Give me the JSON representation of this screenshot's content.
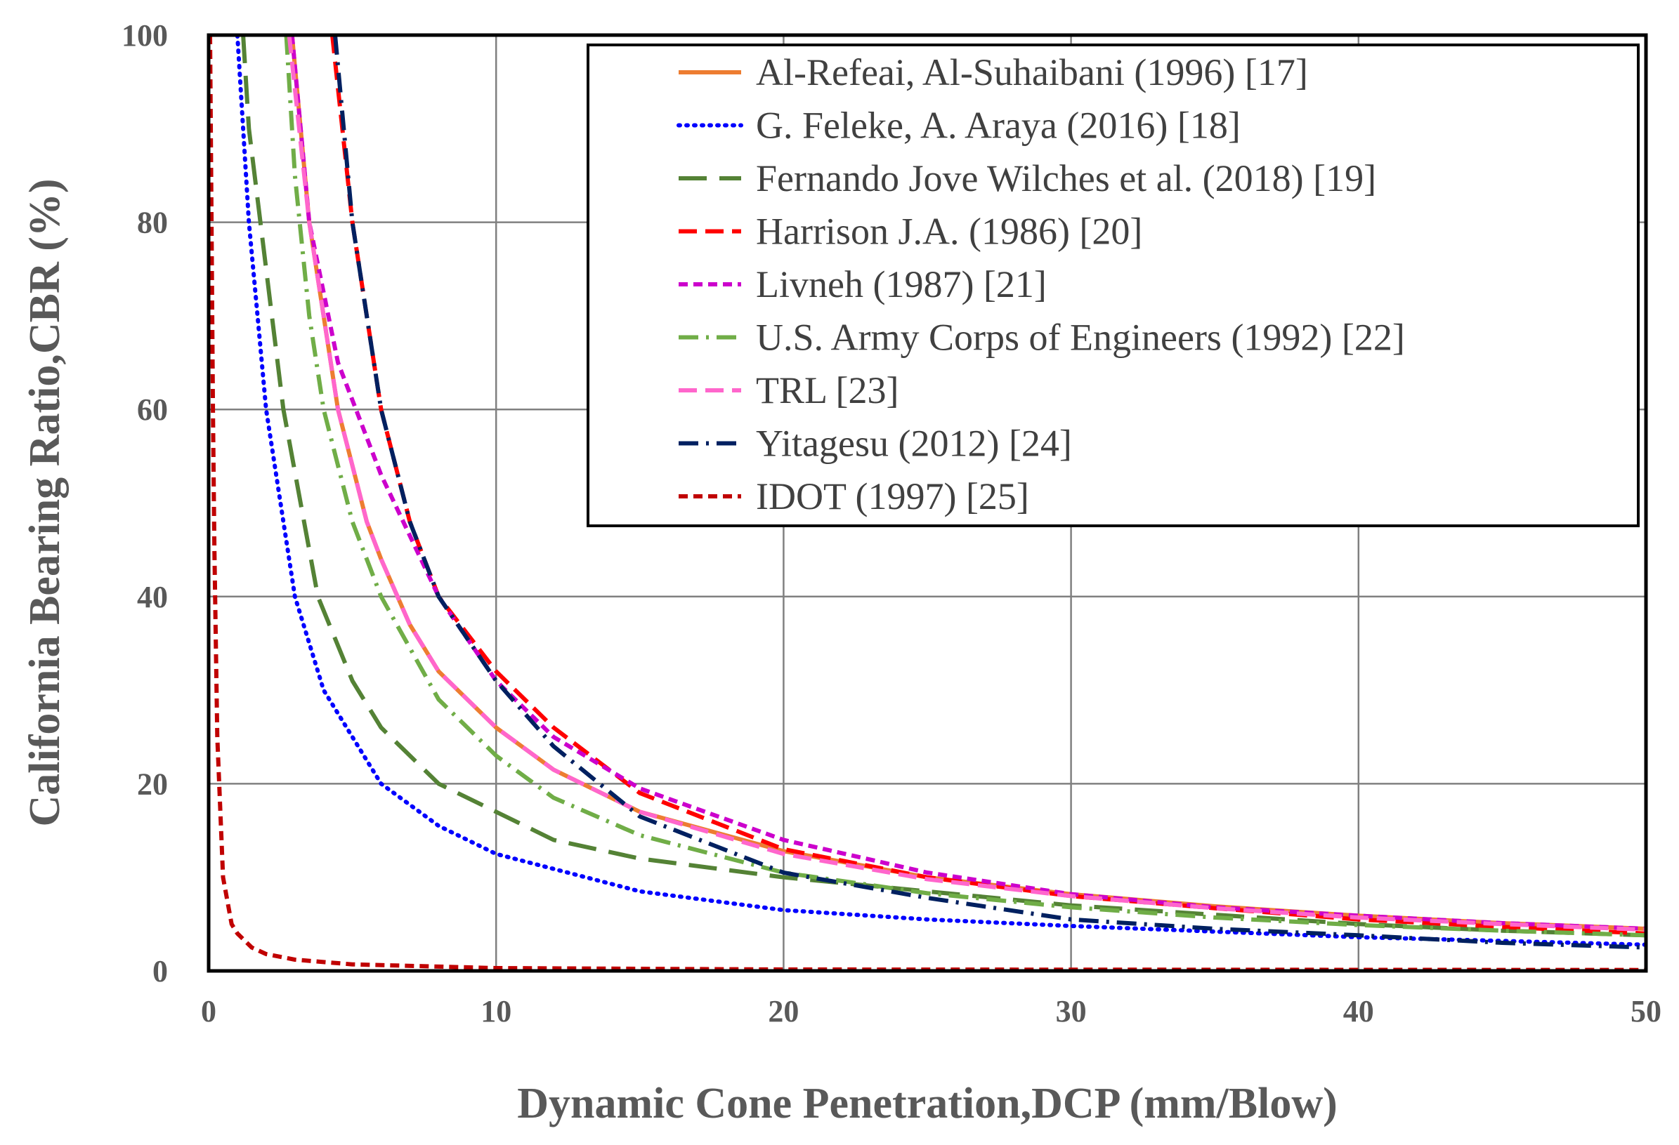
{
  "chart_data": {
    "type": "line",
    "title": "",
    "xlabel": "Dynamic Cone Penetration,DCP (mm/Blow)",
    "ylabel": "California Bearing Ratio,CBR (%)",
    "xlim": [
      0,
      50
    ],
    "ylim": [
      0,
      100
    ],
    "x_ticks": [
      "0",
      "10",
      "20",
      "30",
      "40",
      "50"
    ],
    "y_ticks": [
      "0",
      "20",
      "40",
      "60",
      "80",
      "100"
    ],
    "grid": true,
    "legend_position": "top-right",
    "series": [
      {
        "name": "Al-Refeai, Al-Suhaibani (1996) [17]",
        "color": "#ED7D31",
        "dash": "solid",
        "points": [
          [
            2.9,
            100
          ],
          [
            3.5,
            80
          ],
          [
            4.5,
            60
          ],
          [
            5.5,
            48
          ],
          [
            6,
            44
          ],
          [
            7,
            37
          ],
          [
            8,
            32
          ],
          [
            10,
            26
          ],
          [
            12,
            21.5
          ],
          [
            15,
            17
          ],
          [
            20,
            12.8
          ],
          [
            25,
            10
          ],
          [
            30,
            8.2
          ],
          [
            35,
            6.9
          ],
          [
            40,
            5.9
          ],
          [
            45,
            5.1
          ],
          [
            50,
            4.5
          ]
        ]
      },
      {
        "name": "G. Feleke, A. Araya (2016) [18]",
        "color": "#0000FF",
        "dash": "dot",
        "points": [
          [
            1.0,
            100
          ],
          [
            1.2,
            90
          ],
          [
            1.4,
            80
          ],
          [
            1.7,
            70
          ],
          [
            2.0,
            60
          ],
          [
            2.5,
            50
          ],
          [
            3.0,
            40
          ],
          [
            4,
            30
          ],
          [
            6,
            20
          ],
          [
            8,
            15.5
          ],
          [
            10,
            12.5
          ],
          [
            15,
            8.5
          ],
          [
            20,
            6.5
          ],
          [
            25,
            5.5
          ],
          [
            30,
            4.8
          ],
          [
            35,
            4.2
          ],
          [
            40,
            3.6
          ],
          [
            45,
            3.2
          ],
          [
            50,
            2.8
          ]
        ]
      },
      {
        "name": "Fernando Jove Wilches et al. (2018) [19]",
        "color": "#548235",
        "dash": "longdash",
        "points": [
          [
            1.2,
            100
          ],
          [
            1.4,
            90
          ],
          [
            1.8,
            80
          ],
          [
            2.2,
            70
          ],
          [
            2.6,
            60
          ],
          [
            3.2,
            50
          ],
          [
            3.8,
            40
          ],
          [
            5,
            31
          ],
          [
            6,
            26
          ],
          [
            8,
            20
          ],
          [
            10,
            17
          ],
          [
            12,
            14
          ],
          [
            15,
            12
          ],
          [
            20,
            10
          ],
          [
            25,
            8.5
          ],
          [
            30,
            7
          ],
          [
            35,
            6
          ],
          [
            40,
            5
          ],
          [
            45,
            4.3
          ],
          [
            50,
            3.8
          ]
        ]
      },
      {
        "name": "Harrison J.A. (1986) [20]",
        "color": "#FF0000",
        "dash": "dash",
        "points": [
          [
            4.3,
            100
          ],
          [
            5,
            80
          ],
          [
            6,
            60
          ],
          [
            7,
            48
          ],
          [
            8,
            40
          ],
          [
            10,
            32
          ],
          [
            12,
            26
          ],
          [
            15,
            19
          ],
          [
            20,
            13
          ],
          [
            25,
            10
          ],
          [
            30,
            8
          ],
          [
            35,
            6.7
          ],
          [
            40,
            5.5
          ],
          [
            45,
            4.7
          ],
          [
            50,
            4
          ]
        ]
      },
      {
        "name": "Livneh (1987) [21]",
        "color": "#CC00CC",
        "dash": "shortdash",
        "points": [
          [
            2.9,
            100
          ],
          [
            3.5,
            80
          ],
          [
            4.5,
            65
          ],
          [
            6,
            53
          ],
          [
            8,
            40
          ],
          [
            10,
            31
          ],
          [
            12,
            25
          ],
          [
            15,
            19.5
          ],
          [
            20,
            14
          ],
          [
            25,
            10.5
          ],
          [
            30,
            8.2
          ],
          [
            35,
            6.8
          ],
          [
            40,
            5.9
          ],
          [
            45,
            5.1
          ],
          [
            50,
            4.5
          ]
        ]
      },
      {
        "name": "U.S. Army Corps of Engineers (1992) [22]",
        "color": "#70AD47",
        "dash": "dashdot",
        "points": [
          [
            2.7,
            100
          ],
          [
            3.0,
            85
          ],
          [
            3.5,
            70
          ],
          [
            4,
            60
          ],
          [
            5,
            48
          ],
          [
            6,
            40
          ],
          [
            8,
            29
          ],
          [
            10,
            23
          ],
          [
            12,
            18.5
          ],
          [
            15,
            14.5
          ],
          [
            20,
            10.5
          ],
          [
            25,
            8.3
          ],
          [
            30,
            6.8
          ],
          [
            35,
            5.7
          ],
          [
            40,
            4.9
          ],
          [
            45,
            4.3
          ],
          [
            50,
            3.8
          ]
        ]
      },
      {
        "name": "TRL [23]",
        "color": "#FF66CC",
        "dash": "dash",
        "points": [
          [
            2.8,
            100
          ],
          [
            3.5,
            80
          ],
          [
            4.5,
            60
          ],
          [
            5.5,
            48
          ],
          [
            6,
            44
          ],
          [
            7,
            37
          ],
          [
            8,
            32
          ],
          [
            10,
            26
          ],
          [
            12,
            21.5
          ],
          [
            15,
            17
          ],
          [
            20,
            12.5
          ],
          [
            25,
            9.8
          ],
          [
            30,
            8
          ],
          [
            35,
            6.7
          ],
          [
            40,
            5.7
          ],
          [
            45,
            5
          ],
          [
            50,
            4.4
          ]
        ]
      },
      {
        "name": "Yitagesu (2012) [24]",
        "color": "#002060",
        "dash": "dashdot",
        "points": [
          [
            4.4,
            100
          ],
          [
            5,
            80
          ],
          [
            6,
            60
          ],
          [
            7,
            48
          ],
          [
            8,
            40
          ],
          [
            10,
            31
          ],
          [
            12,
            24
          ],
          [
            15,
            16.5
          ],
          [
            20,
            10.5
          ],
          [
            25,
            7.8
          ],
          [
            30,
            5.5
          ],
          [
            35,
            4.5
          ],
          [
            40,
            3.8
          ],
          [
            45,
            3
          ],
          [
            50,
            2.5
          ]
        ]
      },
      {
        "name": "IDOT (1997) [25]",
        "color": "#C00000",
        "dash": "shortdash",
        "points": [
          [
            0.05,
            100
          ],
          [
            0.1,
            80
          ],
          [
            0.15,
            60
          ],
          [
            0.2,
            45
          ],
          [
            0.3,
            25
          ],
          [
            0.5,
            10
          ],
          [
            0.8,
            5
          ],
          [
            1,
            4
          ],
          [
            1.5,
            2.5
          ],
          [
            2,
            1.8
          ],
          [
            3,
            1.2
          ],
          [
            5,
            0.7
          ],
          [
            10,
            0.3
          ],
          [
            20,
            0.15
          ],
          [
            50,
            0.1
          ]
        ]
      }
    ]
  }
}
